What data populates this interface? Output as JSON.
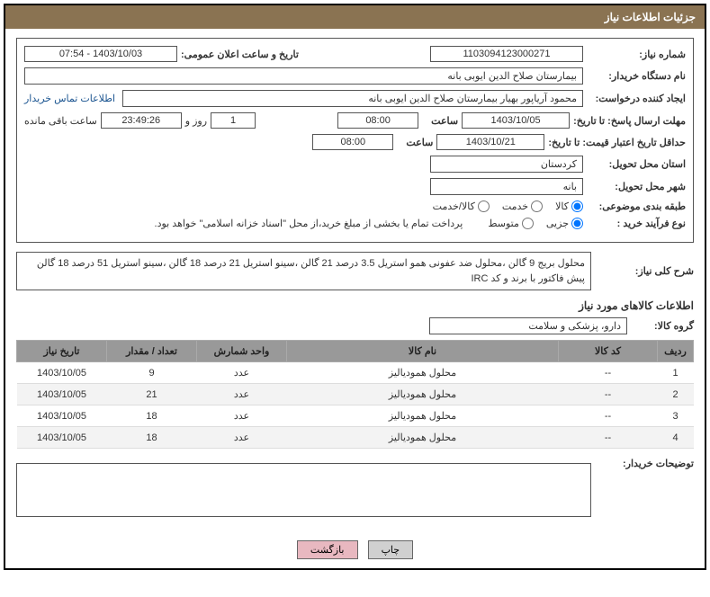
{
  "header": {
    "title": "جزئیات اطلاعات نیاز"
  },
  "need": {
    "number_label": "شماره نیاز:",
    "number": "1103094123000271",
    "public_announce_label": "تاریخ و ساعت اعلان عمومی:",
    "public_announce": "1403/10/03 - 07:54",
    "buyer_org_label": "نام دستگاه خریدار:",
    "buyer_org": "بیمارستان صلاح الدین ایوبی بانه",
    "requester_label": "ایجاد کننده درخواست:",
    "requester": "محمود آریاپور بهیار بیمارستان صلاح الدین ایوبی بانه",
    "contact_link": "اطلاعات تماس خریدار",
    "response_deadline_label": "مهلت ارسال پاسخ: تا تاریخ:",
    "response_date": "1403/10/05",
    "time_label": "ساعت",
    "response_time": "08:00",
    "days": "1",
    "days_label": "روز و",
    "countdown": "23:49:26",
    "remain_label": "ساعت باقی مانده",
    "validity_label": "حداقل تاریخ اعتبار قیمت: تا تاریخ:",
    "validity_date": "1403/10/21",
    "validity_time": "08:00",
    "province_label": "استان محل تحویل:",
    "province": "کردستان",
    "city_label": "شهر محل تحویل:",
    "city": "بانه",
    "category_label": "طبقه بندی موضوعی:",
    "cat_goods": "کالا",
    "cat_service": "خدمت",
    "cat_both": "کالا/خدمت",
    "purchase_type_label": "نوع فرآیند خرید :",
    "pt_small": "جزیی",
    "pt_medium": "متوسط",
    "payment_note": "پرداخت تمام یا بخشی از مبلغ خرید،از محل \"اسناد خزانه اسلامی\" خواهد بود."
  },
  "summary": {
    "label": "شرح کلی نیاز:",
    "text": "محلول بریج 9 گالن ،محلول ضد عفونی همو استریل 3.5 درصد 21 گالن ،سینو استریل 21 درصد 18 گالن ،سینو استریل 51 درصد 18 گالن پیش فاکتور با برند و کد IRC"
  },
  "goods_section": {
    "title": "اطلاعات کالاهای مورد نیاز",
    "group_label": "گروه کالا:",
    "group": "دارو، پزشکی و سلامت"
  },
  "table": {
    "headers": [
      "ردیف",
      "کد کالا",
      "نام کالا",
      "واحد شمارش",
      "تعداد / مقدار",
      "تاریخ نیاز"
    ],
    "rows": [
      [
        "1",
        "--",
        "محلول همودیالیز",
        "عدد",
        "9",
        "1403/10/05"
      ],
      [
        "2",
        "--",
        "محلول همودیالیز",
        "عدد",
        "21",
        "1403/10/05"
      ],
      [
        "3",
        "--",
        "محلول همودیالیز",
        "عدد",
        "18",
        "1403/10/05"
      ],
      [
        "4",
        "--",
        "محلول همودیالیز",
        "عدد",
        "18",
        "1403/10/05"
      ]
    ]
  },
  "notes": {
    "label": "توضیحات خریدار:"
  },
  "buttons": {
    "print": "چاپ",
    "back": "بازگشت"
  }
}
